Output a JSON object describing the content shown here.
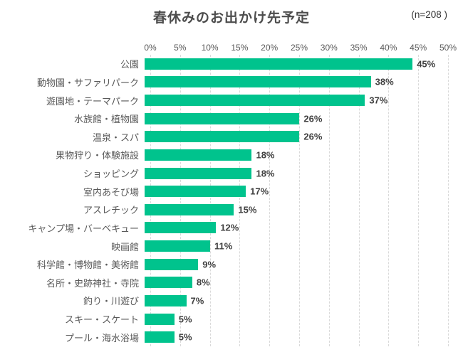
{
  "header": {
    "title": "春休みのお出かけ先予定",
    "sample_size_label": "(n=208 )"
  },
  "chart_data": {
    "type": "bar",
    "orientation": "horizontal",
    "title": "春休みのお出かけ先予定",
    "sample_size": 208,
    "categories": [
      "公園",
      "動物園・サファリパーク",
      "遊園地・テーマパーク",
      "水族館・植物園",
      "温泉・スパ",
      "果物狩り・体験施設",
      "ショッピング",
      "室内あそび場",
      "アスレチック",
      "キャンプ場・バーベキュー",
      "映画館",
      "科学館・博物館・美術館",
      "名所・史跡神社・寺院",
      "釣り・川遊び",
      "スキー・スケート",
      "プール・海水浴場"
    ],
    "values": [
      45,
      38,
      37,
      26,
      26,
      18,
      18,
      17,
      15,
      12,
      11,
      9,
      8,
      7,
      5,
      5
    ],
    "value_suffix": "%",
    "xlabel": "",
    "ylabel": "",
    "xlim": [
      0,
      50
    ],
    "x_tick_labels": [
      "0%",
      "5%",
      "10%",
      "15%",
      "20%",
      "25%",
      "30%",
      "35%",
      "40%",
      "45%",
      "50%"
    ],
    "grid": "vertical-dashed",
    "legend": "none",
    "colors": {
      "bar": "#00c38d",
      "grid_line": "#d9d9d9",
      "value_label": "#404040",
      "category_label": "#595959",
      "axis_label": "#595959",
      "title": "#4d4d4d"
    }
  }
}
